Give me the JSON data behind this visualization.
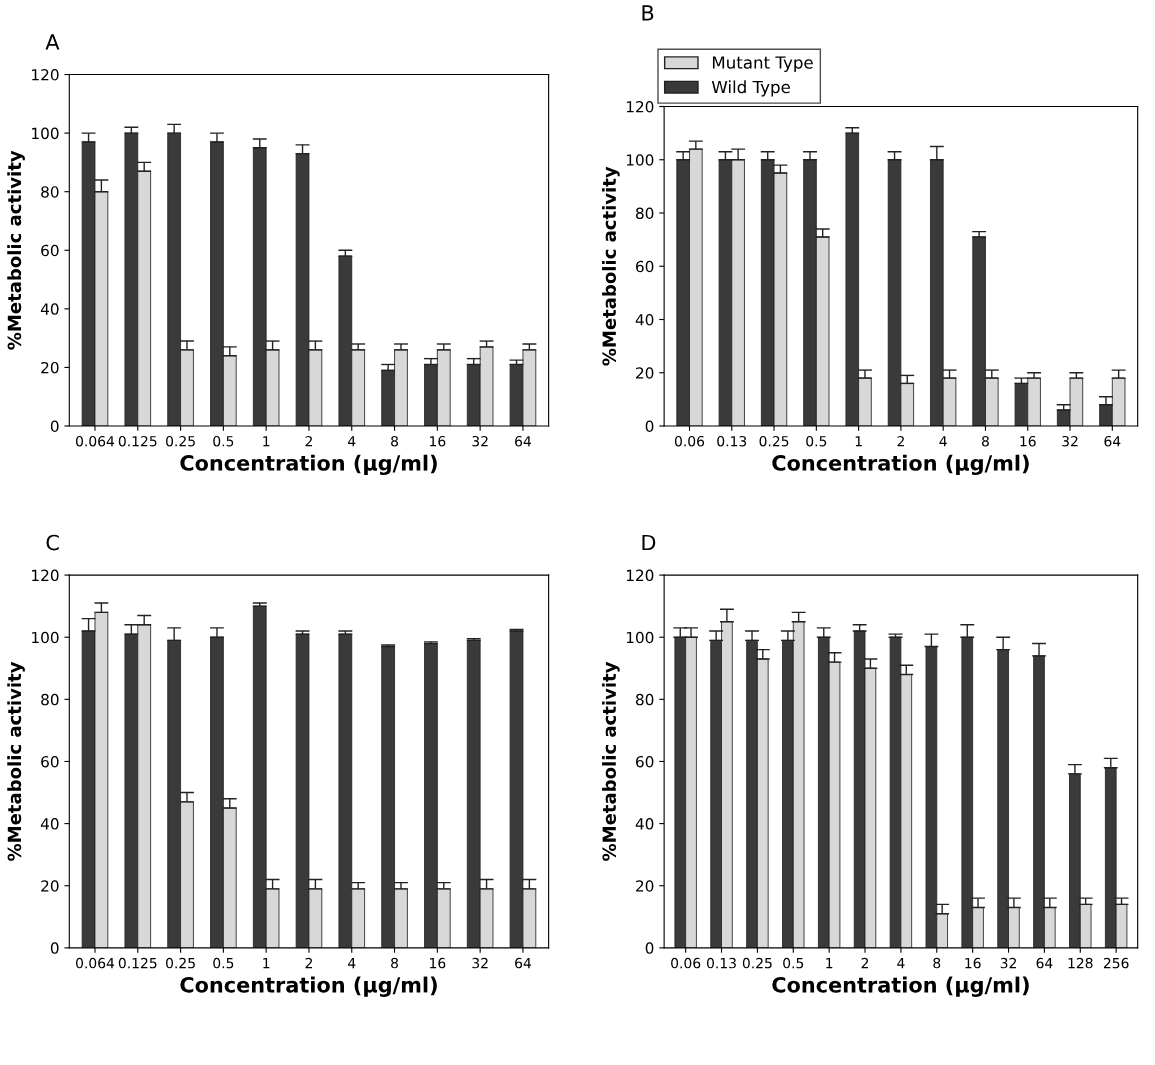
{
  "chart_data": [
    {
      "type": "bar",
      "title": "A",
      "xlabel": "Concentration (µg/ml)",
      "ylabel": "%Metabolic activity",
      "categories": [
        "0.064",
        "0.125",
        "0.25",
        "0.5",
        "1",
        "2",
        "4",
        "8",
        "16",
        "32",
        "64"
      ],
      "series": [
        {
          "color": "#3a3a3a",
          "values": [
            97,
            100,
            100,
            97,
            95,
            93,
            58,
            19,
            21,
            21,
            21
          ],
          "errors": [
            3,
            2,
            3,
            3,
            3,
            3,
            2,
            2,
            2,
            2,
            1.5
          ]
        },
        {
          "color": "#d8d8d8",
          "values": [
            80,
            87,
            26,
            24,
            26,
            26,
            26,
            26,
            26,
            27,
            26
          ],
          "errors": [
            4,
            3,
            3,
            3,
            3,
            3,
            2,
            2,
            2,
            2,
            2
          ]
        }
      ],
      "ylim": [
        0,
        120
      ],
      "yticks": [
        0,
        20,
        40,
        60,
        80,
        100,
        120
      ],
      "grid": false,
      "legend": false
    },
    {
      "type": "bar",
      "title": "B",
      "xlabel": "Concentration (µg/ml)",
      "ylabel": "%Metabolic activity",
      "categories": [
        "0.06",
        "0.13",
        "0.25",
        "0.5",
        "1",
        "2",
        "4",
        "8",
        "16",
        "32",
        "64"
      ],
      "series": [
        {
          "name": "Wild Type",
          "color": "#3a3a3a",
          "values": [
            100,
            100,
            100,
            100,
            110,
            100,
            100,
            71,
            16,
            6,
            8
          ],
          "errors": [
            3,
            3,
            3,
            3,
            2,
            3,
            5,
            2,
            2,
            2,
            3
          ]
        },
        {
          "name": "Mutant Type",
          "color": "#d8d8d8",
          "values": [
            104,
            100,
            95,
            71,
            18,
            16,
            18,
            18,
            18,
            18,
            18
          ],
          "errors": [
            3,
            4,
            3,
            3,
            3,
            3,
            3,
            3,
            2,
            2,
            3
          ]
        }
      ],
      "ylim": [
        0,
        120
      ],
      "yticks": [
        0,
        20,
        40,
        60,
        80,
        100,
        120
      ],
      "grid": false,
      "legend": "top left"
    },
    {
      "type": "bar",
      "title": "C",
      "xlabel": "Concentration (µg/ml)",
      "ylabel": "%Metabolic activity",
      "categories": [
        "0.064",
        "0.125",
        "0.25",
        "0.5",
        "1",
        "2",
        "4",
        "8",
        "16",
        "32",
        "64"
      ],
      "series": [
        {
          "color": "#3a3a3a",
          "values": [
            102,
            101,
            99,
            100,
            110,
            101,
            101,
            97,
            98,
            99,
            102
          ],
          "errors": [
            4,
            3,
            4,
            3,
            1,
            1,
            1,
            0.5,
            0.5,
            0.5,
            0.5
          ]
        },
        {
          "color": "#d8d8d8",
          "values": [
            108,
            104,
            47,
            45,
            19,
            19,
            19,
            19,
            19,
            19,
            19
          ],
          "errors": [
            3,
            3,
            3,
            3,
            3,
            3,
            2,
            2,
            2,
            3,
            3
          ]
        }
      ],
      "ylim": [
        0,
        120
      ],
      "yticks": [
        0,
        20,
        40,
        60,
        80,
        100,
        120
      ],
      "grid": false,
      "legend": false
    },
    {
      "type": "bar",
      "title": "D",
      "xlabel": "Concentration (µg/ml)",
      "ylabel": "%Metabolic activity",
      "categories": [
        "0.06",
        "0.13",
        "0.25",
        "0.5",
        "1",
        "2",
        "4",
        "8",
        "16",
        "32",
        "64",
        "128",
        "256"
      ],
      "series": [
        {
          "color": "#3a3a3a",
          "values": [
            100,
            99,
            99,
            99,
            100,
            102,
            100,
            97,
            100,
            96,
            94,
            56,
            58
          ],
          "errors": [
            3,
            3,
            3,
            3,
            3,
            2,
            1,
            4,
            4,
            4,
            4,
            3,
            3
          ]
        },
        {
          "color": "#d8d8d8",
          "values": [
            100,
            105,
            93,
            105,
            92,
            90,
            88,
            11,
            13,
            13,
            13,
            14,
            14
          ],
          "errors": [
            3,
            4,
            3,
            3,
            3,
            3,
            3,
            3,
            3,
            3,
            3,
            2,
            2
          ]
        }
      ],
      "ylim": [
        0,
        120
      ],
      "yticks": [
        0,
        20,
        40,
        60,
        80,
        100,
        120
      ],
      "grid": false,
      "legend": false
    }
  ]
}
